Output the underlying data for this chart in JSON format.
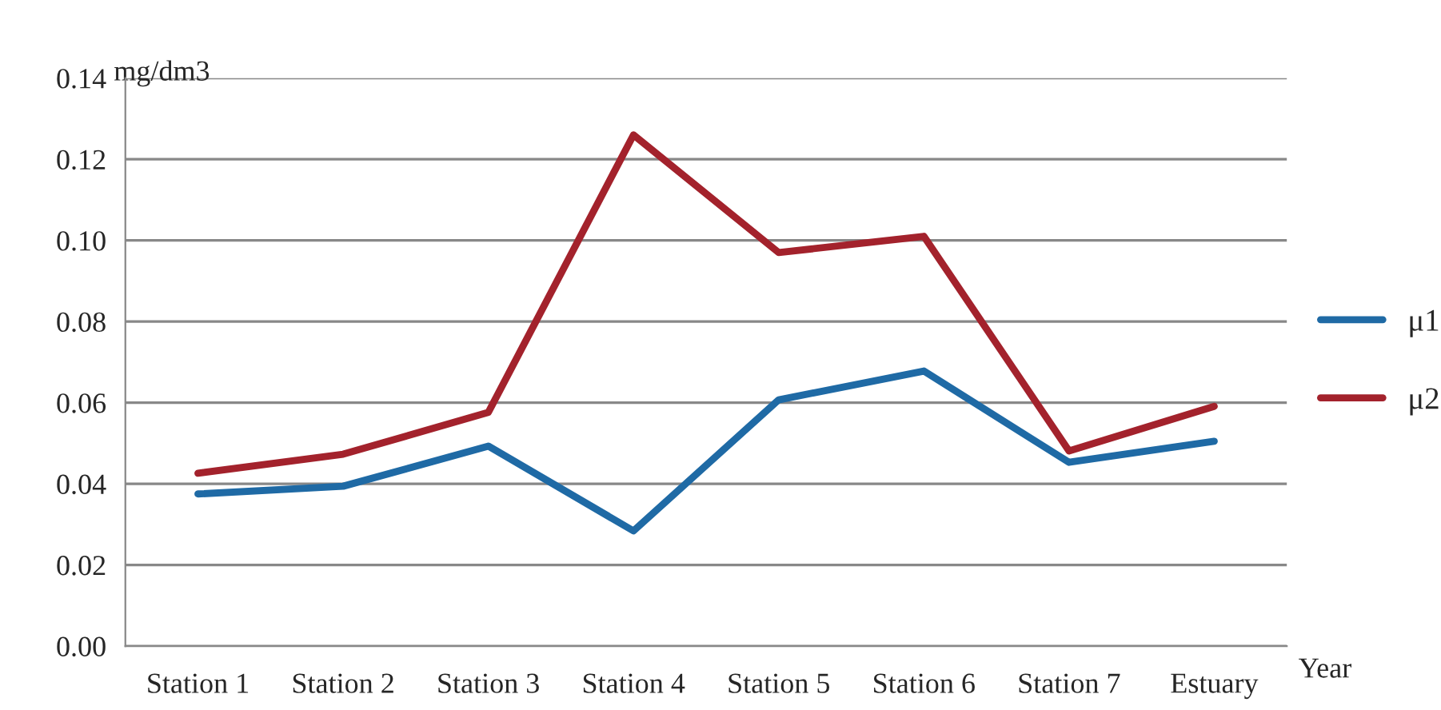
{
  "chart_data": {
    "type": "line",
    "ylabel": "mg/dm3",
    "xlabel": "Year",
    "categories": [
      "Station 1",
      "Station 2",
      "Station 3",
      "Station 4",
      "Station 5",
      "Station 6",
      "Station 7",
      "Estuary"
    ],
    "series": [
      {
        "name": "μ1",
        "color": "#1f6aa5",
        "values": [
          0.0375,
          0.0394,
          0.0493,
          0.0284,
          0.0607,
          0.0678,
          0.0453,
          0.0505
        ]
      },
      {
        "name": "μ2",
        "color": "#a3222c",
        "values": [
          0.0426,
          0.0473,
          0.0576,
          0.126,
          0.097,
          0.101,
          0.0481,
          0.0591
        ]
      }
    ],
    "ylim": [
      0,
      0.14
    ],
    "yticks": [
      {
        "value": 0,
        "label": "0.00"
      },
      {
        "value": 0.02,
        "label": "0.02"
      },
      {
        "value": 0.04,
        "label": "0.04"
      },
      {
        "value": 0.06,
        "label": "0.06"
      },
      {
        "value": 0.08,
        "label": "0.08"
      },
      {
        "value": 0.1,
        "label": "0.10"
      },
      {
        "value": 0.12,
        "label": "0.12"
      },
      {
        "value": 0.14,
        "label": "0.14"
      }
    ],
    "grid": "y",
    "legend": "right",
    "marker": "none",
    "line_style": "solid"
  }
}
